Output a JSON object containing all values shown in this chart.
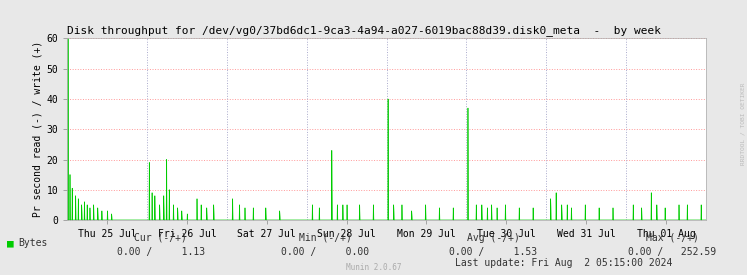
{
  "title": "Disk throughput for /dev/vg0/37bd6dc1-9ca3-4a94-a027-6019bac88d39.disk0_meta  -  by week",
  "ylabel": "Pr second read (-) / write (+)",
  "ylim": [
    0,
    60
  ],
  "yticks": [
    0,
    10,
    20,
    30,
    40,
    50,
    60
  ],
  "bg_color": "#e8e8e8",
  "plot_bg_color": "#ffffff",
  "grid_color_h": "#ff9999",
  "grid_color_v": "#cccccc",
  "line_color": "#00cc00",
  "x_tick_labels": [
    "Thu 25 Jul",
    "Fri 26 Jul",
    "Sat 27 Jul",
    "Sun 28 Jul",
    "Mon 29 Jul",
    "Tue 30 Jul",
    "Wed 31 Jul",
    "Thu 01 Aug"
  ],
  "legend_label": "Bytes",
  "cur_label": "Cur (-/+)",
  "min_label": "Min (-/+)",
  "avg_label": "Avg (-/+)",
  "max_label": "Max (-/+)",
  "cur_neg": "0.00",
  "cur_pos": "1.13",
  "min_neg": "0.00",
  "min_pos": "0.00",
  "avg_neg": "0.00",
  "avg_pos": "1.53",
  "max_neg": "0.00",
  "max_pos": "252.59",
  "last_update": "Last update: Fri Aug  2 05:15:00 2024",
  "munin_version": "Munin 2.0.67",
  "watermark": "RRDTOOL / TOBI OETIKER",
  "title_fontsize": 8,
  "axis_fontsize": 7,
  "tick_fontsize": 7,
  "legend_fontsize": 7
}
